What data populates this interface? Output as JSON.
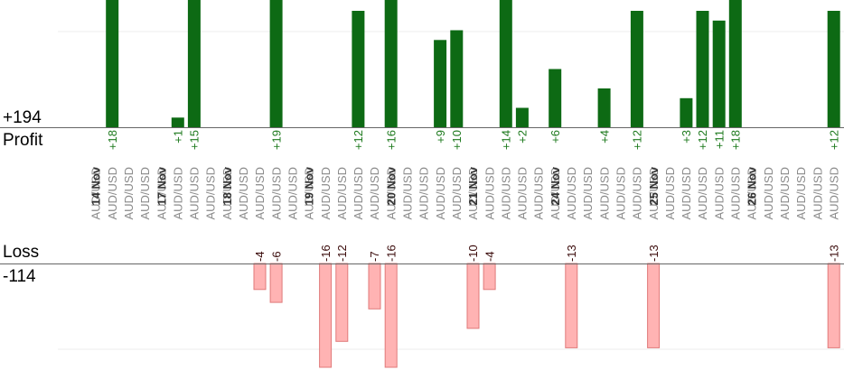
{
  "labels": {
    "profit_total": "+194",
    "profit_label": "Profit",
    "loss_label": "Loss",
    "loss_total": "-114"
  },
  "colors": {
    "profit_bar": "#0d6a14",
    "profit_label": "#1e7a1e",
    "loss_bar": "#ffb3b3",
    "loss_bar_stroke": "#e07a7a",
    "date_text": "#333333",
    "pair_text": "#8a8a8a",
    "loss_text": "#3a0a0a",
    "axis": "#666666",
    "grid": "#eeeeee"
  },
  "chart_data": {
    "type": "bar",
    "title": "",
    "profit_ylim": [
      0,
      12
    ],
    "loss_ylim": [
      0,
      16
    ],
    "grid": true,
    "categories": [
      "AUD/USD",
      "AUD/USD",
      "AUD/USD",
      "AUD/USD",
      "AUD/USD",
      "AUD/USD",
      "AUD/USD",
      "AUD/USD",
      "AUD/USD",
      "AUD/USD",
      "AUD/USD",
      "AUD/USD",
      "AUD/USD",
      "AUD/USD",
      "AUD/USD",
      "AUD/USD",
      "AUD/USD",
      "AUD/USD",
      "AUD/USD",
      "AUD/USD",
      "AUD/USD",
      "AUD/USD",
      "AUD/USD",
      "AUD/USD",
      "AUD/USD",
      "AUD/USD",
      "AUD/USD",
      "AUD/USD",
      "AUD/USD",
      "AUD/USD",
      "AUD/USD",
      "AUD/USD",
      "AUD/USD",
      "AUD/USD",
      "AUD/USD",
      "AUD/USD",
      "AUD/USD",
      "AUD/USD",
      "AUD/USD",
      "AUD/USD",
      "AUD/USD",
      "AUD/USD",
      "AUD/USD",
      "AUD/USD",
      "AUD/USD",
      "AUD/USD",
      "AUD/USD"
    ],
    "date_groups": [
      {
        "label": "14 Nov",
        "start": 0
      },
      {
        "label": "17 Nov",
        "start": 4
      },
      {
        "label": "18 Nov",
        "start": 8
      },
      {
        "label": "19 Nov",
        "start": 13
      },
      {
        "label": "20 Nov",
        "start": 18
      },
      {
        "label": "21 Nov",
        "start": 23
      },
      {
        "label": "24 Nov",
        "start": 28
      },
      {
        "label": "25 Nov",
        "start": 34
      },
      {
        "label": "26 Nov",
        "start": 40
      }
    ],
    "series": [
      {
        "name": "Profit",
        "values": [
          null,
          18,
          null,
          null,
          null,
          1,
          15,
          null,
          null,
          null,
          null,
          19,
          null,
          null,
          null,
          null,
          12,
          null,
          16,
          null,
          null,
          9,
          10,
          null,
          null,
          14,
          2,
          null,
          6,
          null,
          null,
          4,
          null,
          12,
          null,
          null,
          3,
          12,
          11,
          18,
          null,
          null,
          null,
          null,
          null,
          12,
          null
        ],
        "labels": [
          "",
          "+18",
          "",
          "",
          "",
          "+1",
          "+15",
          "",
          "",
          "",
          "",
          "+19",
          "",
          "",
          "",
          "",
          "+12",
          "",
          "+16",
          "",
          "",
          "+9",
          "+10",
          "",
          "",
          "+14",
          "+2",
          "",
          "+6",
          "",
          "",
          "+4",
          "",
          "+12",
          "",
          "",
          "+3",
          "+12",
          "+11",
          "+18",
          "",
          "",
          "",
          "",
          "",
          "+12",
          ""
        ]
      },
      {
        "name": "Loss",
        "values": [
          null,
          null,
          null,
          null,
          null,
          null,
          null,
          null,
          null,
          null,
          4,
          6,
          null,
          null,
          16,
          12,
          null,
          7,
          16,
          null,
          null,
          null,
          null,
          10,
          4,
          null,
          null,
          null,
          null,
          13,
          null,
          null,
          null,
          null,
          13,
          null,
          null,
          null,
          null,
          null,
          null,
          null,
          null,
          null,
          null,
          13,
          null
        ],
        "labels": [
          "",
          "",
          "",
          "",
          "",
          "",
          "",
          "",
          "",
          "",
          "-4",
          "-6",
          "",
          "",
          "-16",
          "-12",
          "",
          "-7",
          "-16",
          "",
          "",
          "",
          "",
          "-10",
          "-4",
          "",
          "",
          "",
          "",
          "-13",
          "",
          "",
          "",
          "",
          "-13",
          "",
          "",
          "",
          "",
          "",
          "",
          "",
          "",
          "",
          "",
          "-13",
          ""
        ]
      }
    ]
  }
}
